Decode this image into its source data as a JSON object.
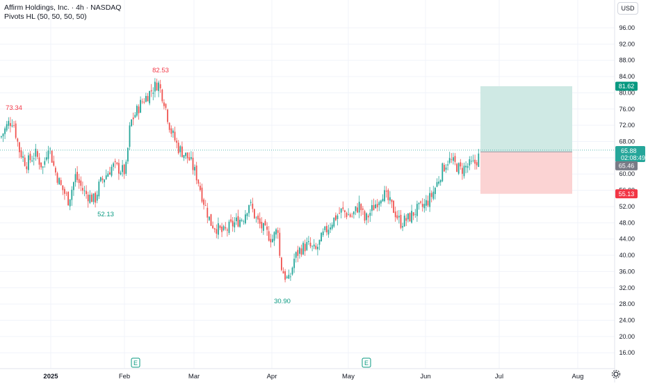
{
  "header": {
    "title": "Affirm Holdings, Inc. · 4h · NASDAQ",
    "indicator": "Pivots HL (50, 50, 50, 50)"
  },
  "currency_button": "USD",
  "colors": {
    "up": "#26a69a",
    "down": "#ef5350",
    "profit_zone": "#cfe9e4",
    "loss_zone": "#fbd3d3",
    "pivot_high": "#f23645",
    "pivot_low": "#089981",
    "axis_text": "#131722",
    "grid": "#f0f3fa"
  },
  "chart_data": {
    "type": "candlestick",
    "title": "Affirm Holdings, Inc. · 4h · NASDAQ",
    "x_labels": [
      "2025",
      "Feb",
      "Mar",
      "Apr",
      "May",
      "Jun",
      "Jul",
      "Aug"
    ],
    "y_ticks": [
      16,
      20,
      24,
      28,
      32,
      36,
      40,
      44,
      48,
      52,
      56,
      60,
      64,
      68,
      72,
      76,
      80,
      84,
      88,
      92,
      96
    ],
    "ylim": [
      13,
      101
    ],
    "pivots": [
      {
        "label": "73.34",
        "type": "high",
        "x_month": 0.1
      },
      {
        "label": "82.53",
        "type": "high",
        "x_month": 1.48
      },
      {
        "label": "52.13",
        "type": "low",
        "x_month": 0.75
      },
      {
        "label": "30.90",
        "type": "low",
        "x_month": 3.12
      }
    ],
    "price_labels": [
      {
        "label": "81.62",
        "kind": "target"
      },
      {
        "label": "65.88",
        "kind": "last"
      },
      {
        "label": "02:08:49",
        "kind": "countdown"
      },
      {
        "label": "65.46",
        "kind": "entry"
      },
      {
        "label": "55.13",
        "kind": "stop"
      }
    ],
    "position": {
      "entry": 65.46,
      "target": 81.62,
      "stop": 55.13,
      "start_month": 5.72,
      "end_month": 6.95
    },
    "earnings_markers": [
      {
        "label": "E",
        "x_month": 1.15
      },
      {
        "label": "E",
        "x_month": 4.24
      }
    ],
    "path_anchors": [
      {
        "m": 0.0,
        "p": 69.0
      },
      {
        "m": 0.1,
        "p": 72.5
      },
      {
        "m": 0.16,
        "p": 73.3
      },
      {
        "m": 0.24,
        "p": 66.0
      },
      {
        "m": 0.33,
        "p": 62.5
      },
      {
        "m": 0.45,
        "p": 65.0
      },
      {
        "m": 0.55,
        "p": 61.5
      },
      {
        "m": 0.62,
        "p": 67.5
      },
      {
        "m": 0.7,
        "p": 61.0
      },
      {
        "m": 0.78,
        "p": 57.0
      },
      {
        "m": 0.88,
        "p": 53.5
      },
      {
        "m": 0.97,
        "p": 59.5
      },
      {
        "m": 1.08,
        "p": 55.5
      },
      {
        "m": 1.22,
        "p": 53.5
      },
      {
        "m": 1.28,
        "p": 57.5
      },
      {
        "m": 1.45,
        "p": 62.0
      },
      {
        "m": 1.62,
        "p": 60.5
      },
      {
        "m": 1.68,
        "p": 72.5
      },
      {
        "m": 1.82,
        "p": 77.5
      },
      {
        "m": 1.95,
        "p": 80.5
      },
      {
        "m": 2.04,
        "p": 82.5
      },
      {
        "m": 2.12,
        "p": 78.0
      },
      {
        "m": 2.2,
        "p": 71.0
      },
      {
        "m": 2.3,
        "p": 66.5
      },
      {
        "m": 2.45,
        "p": 63.5
      },
      {
        "m": 2.55,
        "p": 59.0
      },
      {
        "m": 2.62,
        "p": 54.0
      },
      {
        "m": 2.72,
        "p": 48.0
      },
      {
        "m": 2.88,
        "p": 45.5
      },
      {
        "m": 3.0,
        "p": 47.5
      },
      {
        "m": 3.15,
        "p": 49.5
      },
      {
        "m": 3.22,
        "p": 53.0
      },
      {
        "m": 3.32,
        "p": 48.5
      },
      {
        "m": 3.42,
        "p": 46.0
      },
      {
        "m": 3.52,
        "p": 44.0
      },
      {
        "m": 3.6,
        "p": 47.0
      },
      {
        "m": 3.62,
        "p": 38.0
      },
      {
        "m": 3.68,
        "p": 35.0
      },
      {
        "m": 3.74,
        "p": 33.5
      },
      {
        "m": 3.8,
        "p": 39.0
      },
      {
        "m": 3.88,
        "p": 41.5
      },
      {
        "m": 3.98,
        "p": 42.5
      },
      {
        "m": 4.08,
        "p": 41.0
      },
      {
        "m": 4.18,
        "p": 45.0
      },
      {
        "m": 4.3,
        "p": 48.5
      },
      {
        "m": 4.42,
        "p": 51.0
      },
      {
        "m": 4.55,
        "p": 49.5
      },
      {
        "m": 4.65,
        "p": 52.5
      },
      {
        "m": 4.72,
        "p": 48.5
      },
      {
        "m": 4.82,
        "p": 51.5
      },
      {
        "m": 4.95,
        "p": 55.5
      },
      {
        "m": 5.02,
        "p": 53.5
      },
      {
        "m": 5.1,
        "p": 51.0
      },
      {
        "m": 5.18,
        "p": 48.0
      },
      {
        "m": 5.28,
        "p": 49.0
      },
      {
        "m": 5.38,
        "p": 51.0
      },
      {
        "m": 5.48,
        "p": 52.0
      },
      {
        "m": 5.58,
        "p": 54.5
      },
      {
        "m": 5.65,
        "p": 57.5
      },
      {
        "m": 5.72,
        "p": 61.0
      },
      {
        "m": 5.8,
        "p": 63.5
      },
      {
        "m": 5.88,
        "p": 62.5
      },
      {
        "m": 5.96,
        "p": 61.0
      },
      {
        "m": 6.05,
        "p": 62.0
      },
      {
        "m": 6.14,
        "p": 62.5
      },
      {
        "m": 6.2,
        "p": 64.5
      }
    ]
  }
}
